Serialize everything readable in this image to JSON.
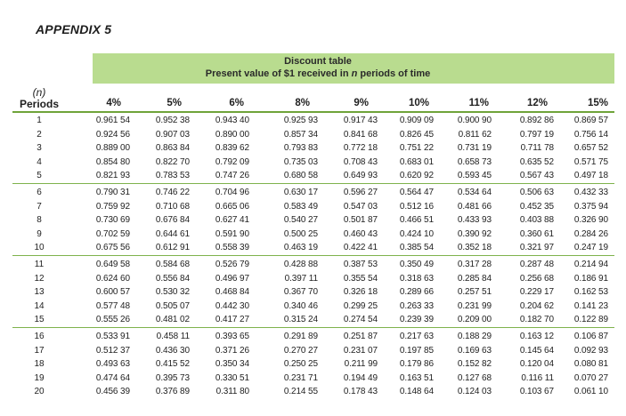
{
  "appendix_title": "APPENDIX 5",
  "banner": {
    "title": "Discount table",
    "subtitle_prefix": "Present value of $1 received in ",
    "subtitle_var": "n",
    "subtitle_suffix": " periods of time",
    "color": "#b9dc8f"
  },
  "period_header": {
    "var": "(n)",
    "label": "Periods"
  },
  "rates": [
    "4%",
    "5%",
    "6%",
    "8%",
    "9%",
    "10%",
    "11%",
    "12%",
    "15%"
  ],
  "rows": [
    {
      "period": "1",
      "values": [
        "0.961 54",
        "0.952 38",
        "0.943 40",
        "0.925 93",
        "0.917 43",
        "0.909 09",
        "0.900 90",
        "0.892 86",
        "0.869 57"
      ]
    },
    {
      "period": "2",
      "values": [
        "0.924 56",
        "0.907 03",
        "0.890 00",
        "0.857 34",
        "0.841 68",
        "0.826 45",
        "0.811 62",
        "0.797 19",
        "0.756 14"
      ]
    },
    {
      "period": "3",
      "values": [
        "0.889 00",
        "0.863 84",
        "0.839 62",
        "0.793 83",
        "0.772 18",
        "0.751 22",
        "0.731 19",
        "0.711 78",
        "0.657 52"
      ]
    },
    {
      "period": "4",
      "values": [
        "0.854 80",
        "0.822 70",
        "0.792 09",
        "0.735 03",
        "0.708 43",
        "0.683 01",
        "0.658 73",
        "0.635 52",
        "0.571 75"
      ]
    },
    {
      "period": "5",
      "values": [
        "0.821 93",
        "0.783 53",
        "0.747 26",
        "0.680 58",
        "0.649 93",
        "0.620 92",
        "0.593 45",
        "0.567 43",
        "0.497 18"
      ]
    },
    {
      "period": "6",
      "values": [
        "0.790 31",
        "0.746 22",
        "0.704 96",
        "0.630 17",
        "0.596 27",
        "0.564 47",
        "0.534 64",
        "0.506 63",
        "0.432 33"
      ]
    },
    {
      "period": "7",
      "values": [
        "0.759 92",
        "0.710 68",
        "0.665 06",
        "0.583 49",
        "0.547 03",
        "0.512 16",
        "0.481 66",
        "0.452 35",
        "0.375 94"
      ]
    },
    {
      "period": "8",
      "values": [
        "0.730 69",
        "0.676 84",
        "0.627 41",
        "0.540 27",
        "0.501 87",
        "0.466 51",
        "0.433 93",
        "0.403 88",
        "0.326 90"
      ]
    },
    {
      "period": "9",
      "values": [
        "0.702 59",
        "0.644 61",
        "0.591 90",
        "0.500 25",
        "0.460 43",
        "0.424 10",
        "0.390 92",
        "0.360 61",
        "0.284 26"
      ]
    },
    {
      "period": "10",
      "values": [
        "0.675 56",
        "0.612 91",
        "0.558 39",
        "0.463 19",
        "0.422 41",
        "0.385 54",
        "0.352 18",
        "0.321 97",
        "0.247 19"
      ]
    },
    {
      "period": "11",
      "values": [
        "0.649 58",
        "0.584 68",
        "0.526 79",
        "0.428 88",
        "0.387 53",
        "0.350 49",
        "0.317 28",
        "0.287 48",
        "0.214 94"
      ]
    },
    {
      "period": "12",
      "values": [
        "0.624 60",
        "0.556 84",
        "0.496 97",
        "0.397 11",
        "0.355 54",
        "0.318 63",
        "0.285 84",
        "0.256 68",
        "0.186 91"
      ]
    },
    {
      "period": "13",
      "values": [
        "0.600 57",
        "0.530 32",
        "0.468 84",
        "0.367 70",
        "0.326 18",
        "0.289 66",
        "0.257 51",
        "0.229 17",
        "0.162 53"
      ]
    },
    {
      "period": "14",
      "values": [
        "0.577 48",
        "0.505 07",
        "0.442 30",
        "0.340 46",
        "0.299 25",
        "0.263 33",
        "0.231 99",
        "0.204 62",
        "0.141 23"
      ]
    },
    {
      "period": "15",
      "values": [
        "0.555 26",
        "0.481 02",
        "0.417 27",
        "0.315 24",
        "0.274 54",
        "0.239 39",
        "0.209 00",
        "0.182 70",
        "0.122 89"
      ]
    },
    {
      "period": "16",
      "values": [
        "0.533 91",
        "0.458 11",
        "0.393 65",
        "0.291 89",
        "0.251 87",
        "0.217 63",
        "0.188 29",
        "0.163 12",
        "0.106 87"
      ]
    },
    {
      "period": "17",
      "values": [
        "0.512 37",
        "0.436 30",
        "0.371 26",
        "0.270 27",
        "0.231 07",
        "0.197 85",
        "0.169 63",
        "0.145 64",
        "0.092 93"
      ]
    },
    {
      "period": "18",
      "values": [
        "0.493 63",
        "0.415 52",
        "0.350 34",
        "0.250 25",
        "0.211 99",
        "0.179 86",
        "0.152 82",
        "0.120 04",
        "0.080 81"
      ]
    },
    {
      "period": "19",
      "values": [
        "0.474 64",
        "0.395 73",
        "0.330 51",
        "0.231 71",
        "0.194 49",
        "0.163 51",
        "0.127 68",
        "0.116 11",
        "0.070 27"
      ]
    },
    {
      "period": "20",
      "values": [
        "0.456 39",
        "0.376 89",
        "0.311 80",
        "0.214 55",
        "0.178 43",
        "0.148 64",
        "0.124 03",
        "0.103 67",
        "0.061 10"
      ]
    }
  ]
}
